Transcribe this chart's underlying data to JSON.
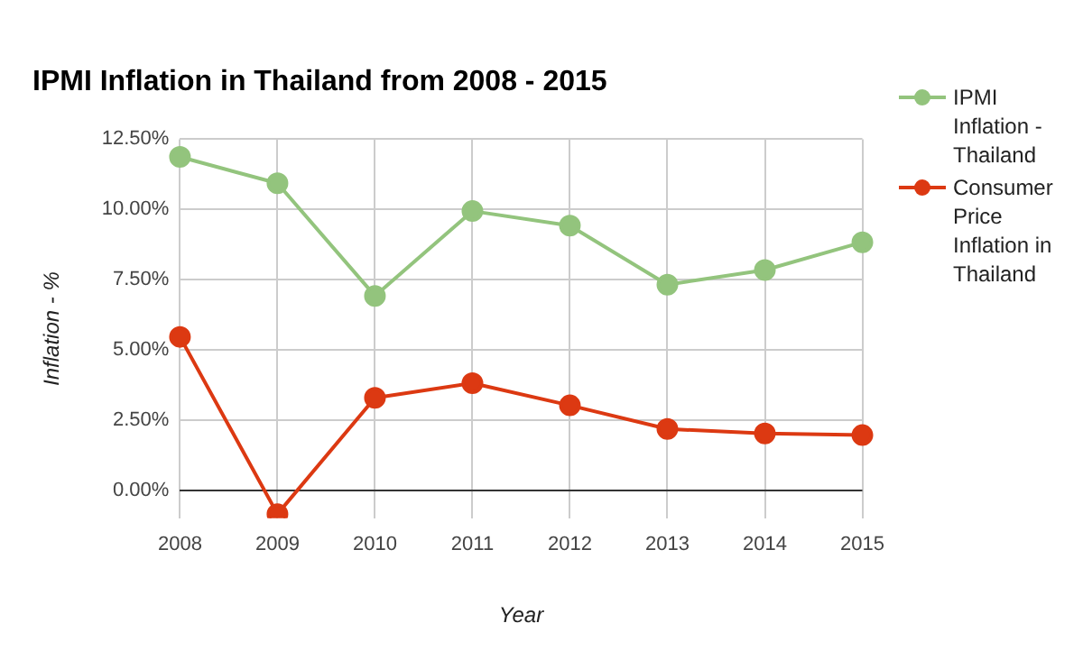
{
  "chart_data": {
    "type": "line",
    "title": "IPMI Inflation in Thailand from 2008 - 2015",
    "xlabel": "Year",
    "ylabel": "Inflation - %",
    "categories": [
      "2008",
      "2009",
      "2010",
      "2011",
      "2012",
      "2013",
      "2014",
      "2015"
    ],
    "series": [
      {
        "name": "IPMI Inflation - Thailand",
        "color": "#93c47d",
        "values": [
          11.87,
          10.93,
          6.92,
          9.94,
          9.42,
          7.32,
          7.84,
          8.83
        ]
      },
      {
        "name": "Consumer Price Inflation in Thailand",
        "color": "#dc3912",
        "values": [
          5.46,
          -0.85,
          3.29,
          3.81,
          3.02,
          2.18,
          2.02,
          1.96
        ]
      }
    ],
    "ylim": [
      -1,
      12.5
    ],
    "yticks": [
      {
        "value": 0,
        "label": "0.00%"
      },
      {
        "value": 2.5,
        "label": "2.50%"
      },
      {
        "value": 5,
        "label": "5.00%"
      },
      {
        "value": 7.5,
        "label": "7.50%"
      },
      {
        "value": 10,
        "label": "10.00%"
      },
      {
        "value": 12.5,
        "label": "12.50%"
      }
    ],
    "grid": true,
    "legend": "right",
    "marker": "circle",
    "line_style": "solid"
  }
}
